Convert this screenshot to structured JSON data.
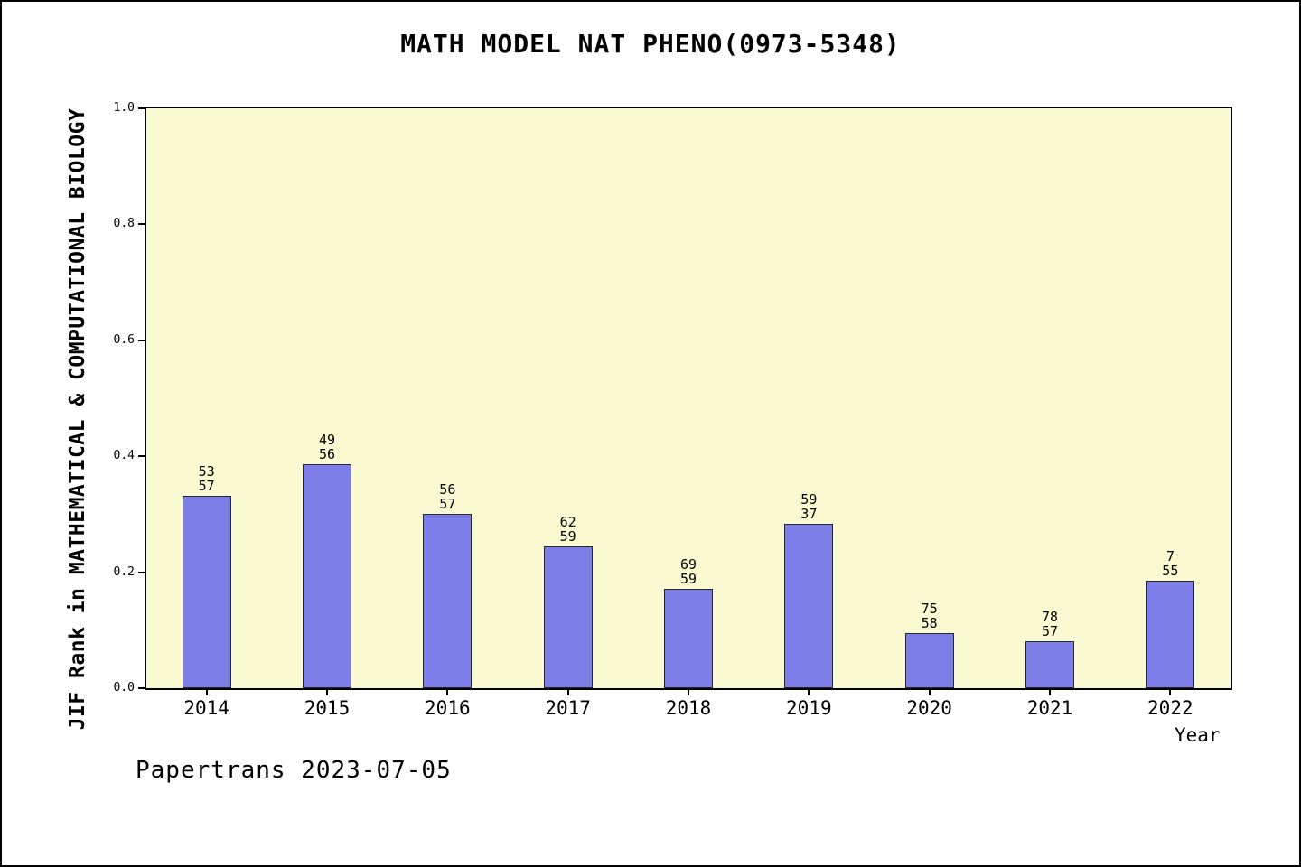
{
  "footer": "Papertrans 2023-07-05",
  "chart_data": {
    "type": "bar",
    "title": "MATH MODEL NAT PHENO(0973-5348)",
    "xlabel": "Year",
    "ylabel": "JIF Rank in MATHEMATICAL & COMPUTATIONAL BIOLOGY",
    "categories": [
      "2014",
      "2015",
      "2016",
      "2017",
      "2018",
      "2019",
      "2020",
      "2021",
      "2022"
    ],
    "values": [
      0.332,
      0.387,
      0.3,
      0.245,
      0.171,
      0.283,
      0.095,
      0.081,
      0.185
    ],
    "bar_labels": [
      [
        "53",
        "57"
      ],
      [
        "49",
        "56"
      ],
      [
        "56",
        "57"
      ],
      [
        "62",
        "59"
      ],
      [
        "69",
        "59"
      ],
      [
        "59",
        "37"
      ],
      [
        "75",
        "58"
      ],
      [
        "78",
        "57"
      ],
      [
        "7",
        "55"
      ]
    ],
    "ylim": [
      0,
      1
    ],
    "yticks": [
      "0.0",
      "0.2",
      "0.4",
      "0.6",
      "0.8",
      "1.0"
    ],
    "grid": false,
    "legend": null,
    "bar_color": "#7d7de8",
    "bar_edge_color": "#26262e",
    "plot_bg_color": "#fafad2"
  }
}
